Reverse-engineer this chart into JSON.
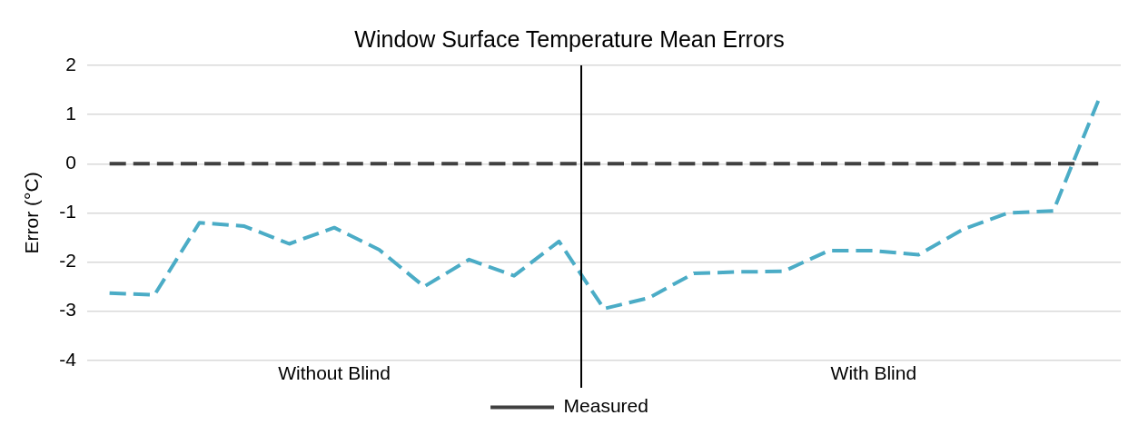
{
  "chart_data": {
    "type": "line",
    "title": "Window Surface Temperature Mean Errors",
    "ylabel": "Error (°C)",
    "categories": [
      null,
      null,
      null,
      null,
      null,
      "Without Blind",
      null,
      null,
      null,
      null,
      null,
      null,
      null,
      null,
      null,
      null,
      null,
      "With Blind",
      null,
      null,
      null,
      null,
      null
    ],
    "ylim": [
      -4,
      2
    ],
    "yticks": [
      -4,
      -3,
      -2,
      -1,
      0,
      1,
      2
    ],
    "series": [
      {
        "color": "#4bacc6",
        "line_style": "dashed",
        "values": [
          -2.63,
          -2.67,
          -1.2,
          -1.27,
          -1.63,
          -1.3,
          -1.75,
          -2.5,
          -1.95,
          -2.28,
          -1.58,
          -2.95,
          -2.73,
          -2.23,
          -2.2,
          -2.19,
          -1.77,
          -1.77,
          -1.85,
          -1.33,
          -1.0,
          -0.96,
          1.28
        ]
      },
      {
        "name": "Measured",
        "color": "#404040",
        "line_style": "dashed",
        "values": [
          0,
          0,
          0,
          0,
          0,
          0,
          0,
          0,
          0,
          0,
          0,
          0,
          0,
          0,
          0,
          0,
          0,
          0,
          0,
          0,
          0,
          0,
          0
        ]
      }
    ],
    "grid": "y",
    "legend": "bottom",
    "marker": "none"
  }
}
